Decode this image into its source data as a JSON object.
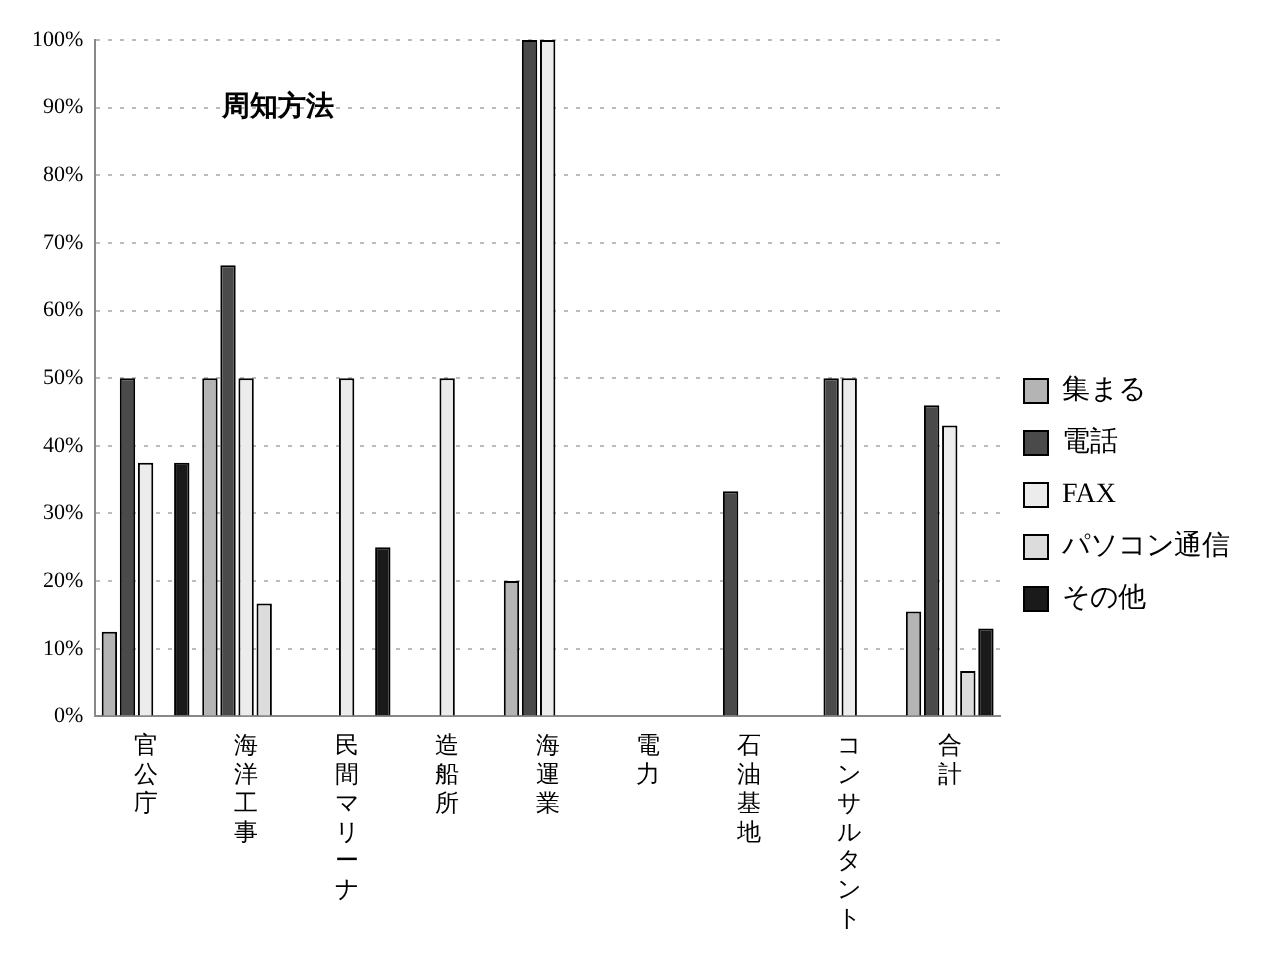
{
  "chart_data": {
    "type": "bar",
    "title": "周知方法",
    "categories": [
      "官公庁",
      "海洋工事",
      "民間マリーナ",
      "造船所",
      "海運業",
      "電力",
      "石油基地",
      "コンサルタント",
      "合計"
    ],
    "series": [
      {
        "name": "集まる",
        "color": "#b4b4b4",
        "values": [
          12.5,
          50,
          0,
          0,
          20,
          0,
          0,
          0,
          15.5
        ]
      },
      {
        "name": "電話",
        "color": "#4a4a4a",
        "values": [
          50,
          66.7,
          0,
          0,
          100,
          0,
          33.3,
          50,
          46
        ]
      },
      {
        "name": "FAX",
        "color": "#ececec",
        "values": [
          37.5,
          50,
          50,
          50,
          100,
          0,
          0,
          50,
          43
        ]
      },
      {
        "name": "パソコン通信",
        "color": "#dcdcdc",
        "values": [
          0,
          16.7,
          0,
          0,
          0,
          0,
          0,
          0,
          6.7
        ]
      },
      {
        "name": "その他",
        "color": "#1a1a1a",
        "values": [
          37.5,
          0,
          25,
          0,
          0,
          0,
          0,
          0,
          13
        ]
      }
    ],
    "ylim": [
      0,
      100
    ],
    "yticks": [
      {
        "value": 0,
        "label": "0%"
      },
      {
        "value": 10,
        "label": "10%"
      },
      {
        "value": 20,
        "label": "20%"
      },
      {
        "value": 30,
        "label": "30%"
      },
      {
        "value": 40,
        "label": "40%"
      },
      {
        "value": 50,
        "label": "50%"
      },
      {
        "value": 60,
        "label": "60%"
      },
      {
        "value": 70,
        "label": "70%"
      },
      {
        "value": 80,
        "label": "80%"
      },
      {
        "value": 90,
        "label": "90%"
      },
      {
        "value": 100,
        "label": "100%"
      }
    ],
    "grid": "y",
    "legend": "right"
  }
}
